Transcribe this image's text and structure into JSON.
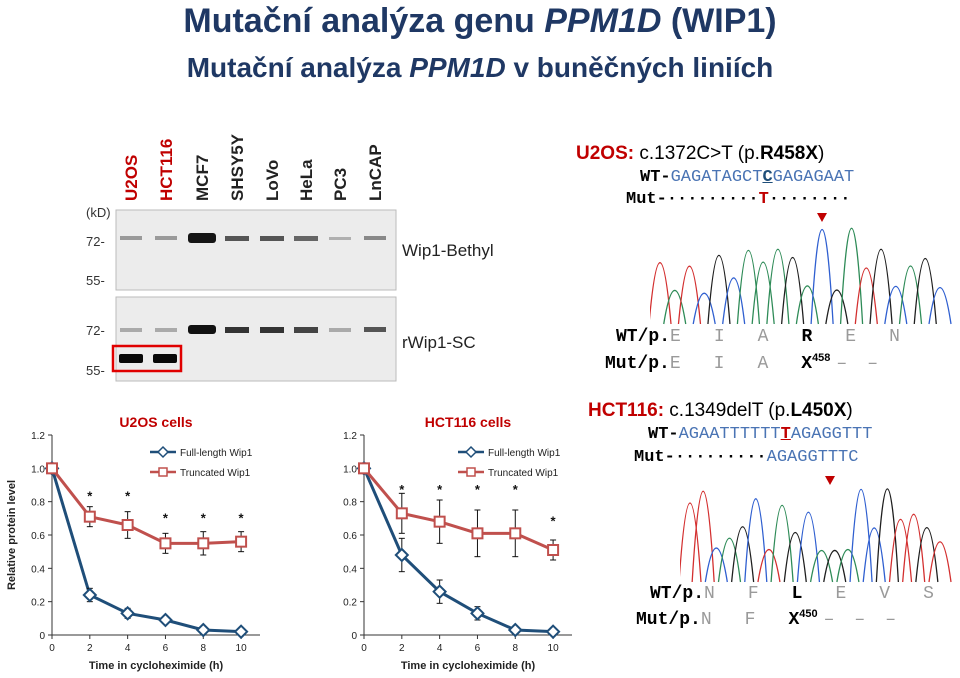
{
  "title": {
    "pre": "Mutační analýza genu ",
    "gene": "PPM1D",
    "post": " (WIP1)"
  },
  "subtitle": {
    "pre": "Mutační analýza ",
    "gene": "PPM1D",
    "post": " v buněčných liniích"
  },
  "western": {
    "lanes": [
      "U2OS",
      "HCT116",
      "MCF7",
      "SHSY5Y",
      "LoVo",
      "HeLa",
      "PC3",
      "LnCAP"
    ],
    "kd_label": "(kD)",
    "top_markers": [
      "72-",
      "55-"
    ],
    "bottom_markers": [
      "72-",
      "55-"
    ],
    "top_label": "Wip1-Bethyl",
    "bottom_label": "rWip1-SC"
  },
  "u2os_mut": {
    "cell": "U2OS:",
    "cdna": " c.1372C>T (p.",
    "prot": "R458X",
    "close": ")",
    "wt_prefix": "WT-",
    "wt_seq_a": "GAGATAGCT",
    "wt_seq_b": "C",
    "wt_seq_c": "GAGAGAAT",
    "mut_prefix": "Mut-",
    "mut_dots_a": "·········",
    "mut_base": "T",
    "mut_dots_b": "········",
    "wtp_label": "WT/p.",
    "wtp_aa": [
      "E",
      "I",
      "A",
      "R",
      "E",
      "N"
    ],
    "mutp_label": "Mut/p.",
    "mutp_aa": [
      "E",
      "I",
      "A",
      "X",
      "458",
      "–",
      "–"
    ]
  },
  "hct_mut": {
    "cell": "HCT116:",
    "cdna": " c.1349delT (p.",
    "prot": "L450X",
    "close": ")",
    "wt_prefix": "WT-",
    "wt_seq_a": "AGAATTTTTT",
    "wt_seq_b": "T",
    "wt_seq_c": "AGAGGTTT",
    "mut_prefix": "Mut-",
    "mut_dots": "·········",
    "mut_seq": "AGAGGTTTC",
    "wtp_label": "WT/p.",
    "wtp_aa": [
      "N",
      "F",
      "L",
      "E",
      "V",
      "S"
    ],
    "mutp_label": "Mut/p.",
    "mutp_aa": [
      "N",
      "F",
      "X",
      "450",
      "–",
      "–",
      "–"
    ]
  },
  "colors": {
    "title": "#1f3864",
    "red": "#c00000",
    "full": "#1f4e79",
    "trunc": "#c0504d",
    "seq_blue": "#4a74b4"
  },
  "chart_data": [
    {
      "type": "line",
      "title": "U2OS cells",
      "xlabel": "Time in cycloheximide (h)",
      "ylabel": "Relative protein level",
      "x": [
        0,
        2,
        4,
        6,
        8,
        10
      ],
      "xticks": [
        "0",
        "2",
        "4",
        "6",
        "8",
        "10"
      ],
      "yticks": [
        "0",
        "0.2",
        "0.4",
        "0.6",
        "0.8",
        "1.0",
        "1.2"
      ],
      "xlim": [
        0,
        11
      ],
      "ylim": [
        0,
        1.2
      ],
      "legend_position": "top-right",
      "series": [
        {
          "name": "Full-length Wip1",
          "values": [
            1.0,
            0.24,
            0.13,
            0.09,
            0.03,
            0.02
          ],
          "errors": [
            0,
            0.04,
            0.03,
            0.02,
            0.01,
            0.01
          ],
          "color": "#1f4e79",
          "marker": "diamond"
        },
        {
          "name": "Truncated Wip1",
          "values": [
            1.0,
            0.71,
            0.66,
            0.55,
            0.55,
            0.56
          ],
          "errors": [
            0,
            0.06,
            0.08,
            0.06,
            0.07,
            0.06
          ],
          "color": "#c0504d",
          "marker": "square"
        }
      ],
      "annotations": [
        {
          "x": 2,
          "y": 0.83,
          "text": "*"
        },
        {
          "x": 4,
          "y": 0.83,
          "text": "*"
        },
        {
          "x": 6,
          "y": 0.7,
          "text": "*"
        },
        {
          "x": 8,
          "y": 0.7,
          "text": "*"
        },
        {
          "x": 10,
          "y": 0.7,
          "text": "*"
        }
      ]
    },
    {
      "type": "line",
      "title": "HCT116 cells",
      "xlabel": "Time in cycloheximide (h)",
      "ylabel": "",
      "x": [
        0,
        2,
        4,
        6,
        8,
        10
      ],
      "xticks": [
        "0",
        "2",
        "4",
        "6",
        "8",
        "10"
      ],
      "yticks": [
        "0",
        "0.2",
        "0.4",
        "0.6",
        "0.8",
        "1.0",
        "1.2"
      ],
      "xlim": [
        0,
        11
      ],
      "ylim": [
        0,
        1.2
      ],
      "legend_position": "top-right",
      "series": [
        {
          "name": "Full-length Wip1",
          "values": [
            1.0,
            0.48,
            0.26,
            0.13,
            0.03,
            0.02
          ],
          "errors": [
            0,
            0.1,
            0.07,
            0.04,
            0.01,
            0.01
          ],
          "color": "#1f4e79",
          "marker": "diamond"
        },
        {
          "name": "Truncated Wip1",
          "values": [
            1.0,
            0.73,
            0.68,
            0.61,
            0.61,
            0.51
          ],
          "errors": [
            0,
            0.12,
            0.13,
            0.14,
            0.14,
            0.06
          ],
          "color": "#c0504d",
          "marker": "square"
        }
      ],
      "annotations": [
        {
          "x": 2,
          "y": 0.87,
          "text": "*"
        },
        {
          "x": 4,
          "y": 0.87,
          "text": "*"
        },
        {
          "x": 6,
          "y": 0.87,
          "text": "*"
        },
        {
          "x": 8,
          "y": 0.87,
          "text": "*"
        },
        {
          "x": 10,
          "y": 0.68,
          "text": "*"
        }
      ]
    }
  ]
}
